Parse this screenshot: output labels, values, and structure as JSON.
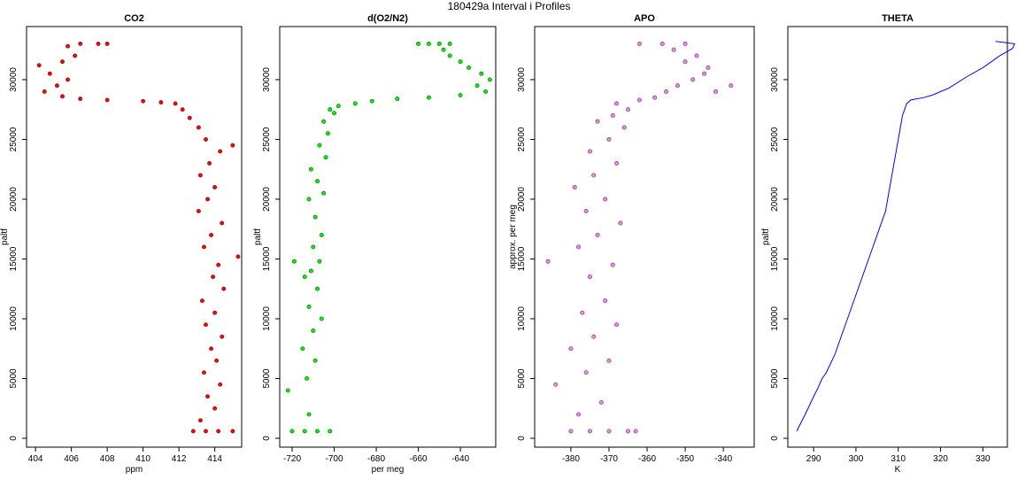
{
  "title": "180429a   Interval i Profiles",
  "chart_data": [
    {
      "type": "scatter",
      "title": "CO2",
      "x_label": "ppm",
      "y_label": "paltf",
      "color": "#ff0000",
      "x": [
        412.8,
        413.5,
        414.2,
        415,
        413.2,
        414,
        413.6,
        414.3,
        413.4,
        414.1,
        413.8,
        414.4,
        413.5,
        414,
        413.3,
        414.5,
        413.9,
        414.2,
        415.3,
        413.4,
        413.8,
        414.4,
        413.1,
        413.6,
        414,
        413.2,
        413.7,
        414.3,
        415,
        413.5,
        413.1,
        412.6,
        412.2,
        411.8,
        411,
        410,
        408,
        406.5,
        405.5,
        404.5,
        405.2,
        405.8,
        404.8,
        404.2,
        405.5,
        406.2,
        405.8,
        406.5,
        407.5,
        408
      ],
      "values": [
        600,
        600,
        600,
        600,
        1500,
        2500,
        3500,
        4500,
        5500,
        6500,
        7500,
        8500,
        9500,
        10500,
        11500,
        12500,
        13500,
        14500,
        15200,
        16000,
        17000,
        18000,
        19000,
        20000,
        21000,
        22000,
        23000,
        24000,
        24500,
        25000,
        26000,
        26800,
        27500,
        28000,
        28100,
        28200,
        28300,
        28400,
        28600,
        29000,
        29500,
        30000,
        30500,
        31200,
        31500,
        32000,
        32800,
        33000,
        33000,
        33000
      ],
      "xlim": [
        403.5,
        415.5
      ],
      "ylim": [
        -740,
        34440
      ],
      "xticks": [
        404,
        406,
        408,
        410,
        412,
        414
      ],
      "yticks": [
        0,
        5000,
        10000,
        15000,
        20000,
        25000,
        30000
      ]
    },
    {
      "type": "scatter",
      "title": "d(O2/N2)",
      "x_label": "per meg",
      "y_label": "paltf",
      "color": "#00ee00",
      "x": [
        -720,
        -714,
        -708,
        -702,
        -712,
        -722,
        -713,
        -709,
        -715,
        -710,
        -706,
        -712,
        -708,
        -714,
        -711,
        -707,
        -719,
        -710,
        -706,
        -709,
        -712,
        -705,
        -708,
        -711,
        -704,
        -707,
        -703,
        -705,
        -700,
        -702,
        -698,
        -690,
        -682,
        -670,
        -655,
        -640,
        -628,
        -632,
        -626,
        -630,
        -636,
        -640,
        -645,
        -648,
        -655,
        -660,
        -650,
        -645
      ],
      "values": [
        600,
        600,
        600,
        600,
        2000,
        4000,
        5000,
        6500,
        7500,
        9000,
        10000,
        11000,
        12500,
        13500,
        14000,
        14800,
        14800,
        16000,
        17000,
        18500,
        20000,
        20500,
        21500,
        22500,
        23500,
        24500,
        25500,
        26500,
        27200,
        27500,
        27800,
        28000,
        28200,
        28400,
        28500,
        28700,
        29000,
        29500,
        30000,
        30500,
        31000,
        31500,
        32000,
        32500,
        33000,
        33000,
        33000,
        33000
      ],
      "xlim": [
        -725.9,
        -623.2
      ],
      "ylim": [
        -740,
        34440
      ],
      "xticks": [
        -720,
        -700,
        -680,
        -660,
        -640
      ],
      "yticks": [
        0,
        5000,
        10000,
        15000,
        20000,
        25000,
        30000
      ]
    },
    {
      "type": "scatter",
      "title": "APO",
      "y_label": "approx. per meg",
      "color": "#ee82ee",
      "x": [
        -380,
        -375,
        -370,
        -365,
        -363,
        -378,
        -372,
        -384,
        -376,
        -370,
        -380,
        -374,
        -368,
        -377,
        -371,
        -386,
        -375,
        -369,
        -378,
        -373,
        -367,
        -376,
        -371,
        -379,
        -374,
        -368,
        -375,
        -370,
        -366,
        -373,
        -369,
        -365,
        -368,
        -362,
        -358,
        -355,
        -352,
        -348,
        -345,
        -342,
        -338,
        -344,
        -350,
        -347,
        -353,
        -362,
        -356,
        -350
      ],
      "values": [
        600,
        600,
        600,
        600,
        600,
        2000,
        3000,
        4500,
        5500,
        6500,
        7500,
        8500,
        9500,
        10500,
        11500,
        14800,
        13500,
        14500,
        16000,
        17000,
        18000,
        19000,
        20000,
        21000,
        22000,
        23000,
        24000,
        25000,
        26000,
        26500,
        27000,
        27500,
        28000,
        28300,
        28500,
        29000,
        29500,
        30000,
        30500,
        29000,
        29500,
        31000,
        31500,
        32000,
        32500,
        33000,
        33000,
        33000
      ],
      "xlim": [
        -389.5,
        -331.9
      ],
      "ylim": [
        -740,
        34440
      ],
      "xticks": [
        -380,
        -370,
        -360,
        -350,
        -340
      ],
      "yticks": [
        0,
        5000,
        10000,
        15000,
        20000,
        25000,
        30000
      ]
    },
    {
      "type": "line",
      "title": "THETA",
      "x_label": "K",
      "y_label": "paltf",
      "color": "#0000ff",
      "x": [
        286,
        288,
        290,
        291,
        292,
        293,
        295,
        297,
        299,
        300,
        302,
        304,
        305,
        307,
        308,
        309,
        310,
        311,
        312,
        313,
        316,
        318,
        322,
        326,
        330,
        334,
        337,
        337.5,
        333
      ],
      "values": [
        600,
        2000,
        3500,
        4200,
        5000,
        5500,
        7000,
        9000,
        11000,
        12000,
        14000,
        16000,
        17000,
        19000,
        21000,
        23000,
        25000,
        27000,
        28000,
        28300,
        28500,
        28700,
        29300,
        30200,
        31000,
        32000,
        32600,
        33000,
        33200
      ],
      "xlim": [
        283.9,
        335.8
      ],
      "ylim": [
        -740,
        34440
      ],
      "xticks": [
        290,
        300,
        310,
        320,
        330
      ],
      "yticks": [
        0,
        5000,
        10000,
        15000,
        20000,
        25000,
        30000
      ]
    }
  ]
}
